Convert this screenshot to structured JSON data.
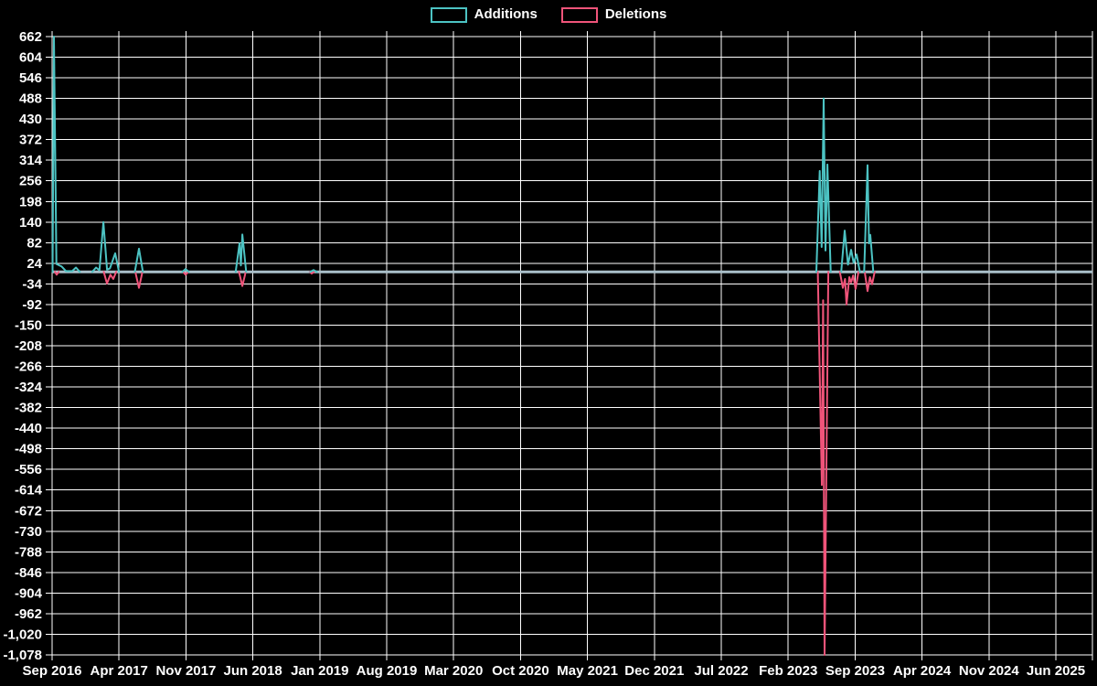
{
  "page": {
    "background": "#000000",
    "text_color": "#ffffff"
  },
  "legend": {
    "position": "top-center"
  },
  "chart_data": {
    "type": "line",
    "title": "",
    "xlabel": "",
    "ylabel": "",
    "grid": true,
    "legend_position": "top",
    "colors": {
      "background": "#000000",
      "grid": "#ffffff",
      "text": "#ffffff",
      "zero_baseline": "#a9bfc9"
    },
    "x_axis": {
      "unit": "month",
      "months_between_ticks": 7,
      "first_tick": "Sep 2016",
      "last_tick": "Jun 2025"
    },
    "x_tick_labels": [
      "Sep 2016",
      "Apr 2017",
      "Nov 2017",
      "Jun 2018",
      "Jan 2019",
      "Aug 2019",
      "Mar 2020",
      "Oct 2020",
      "May 2021",
      "Dec 2021",
      "Jul 2022",
      "Feb 2023",
      "Sep 2023",
      "Apr 2024",
      "Nov 2024",
      "Jun 2025"
    ],
    "y_axis": {
      "max": 662,
      "min": -1078,
      "step": 58
    },
    "y_tick_labels": [
      "662",
      "604",
      "546",
      "488",
      "430",
      "372",
      "314",
      "256",
      "198",
      "140",
      "82",
      "24",
      "-34",
      "-92",
      "-150",
      "-208",
      "-266",
      "-324",
      "-382",
      "-440",
      "-498",
      "-556",
      "-614",
      "-672",
      "-730",
      "-788",
      "-846",
      "-904",
      "-962",
      "-1,020",
      "-1,078"
    ],
    "series": [
      {
        "name": "Additions",
        "color": "#4cc3c3",
        "points_unit": "[months_since_Sep_2016, lines]",
        "clusters": [
          [
            [
              0.05,
              0
            ],
            [
              0.19,
              662
            ],
            [
              0.45,
              22
            ],
            [
              1.0,
              15
            ],
            [
              1.45,
              2
            ],
            [
              2.1,
              2
            ],
            [
              2.5,
              12
            ],
            [
              2.9,
              0
            ]
          ],
          [
            [
              4.2,
              0
            ],
            [
              4.6,
              12
            ],
            [
              4.95,
              4
            ],
            [
              5.36,
              140
            ],
            [
              5.75,
              6
            ],
            [
              6.05,
              10
            ],
            [
              6.6,
              52
            ],
            [
              7.0,
              0
            ]
          ],
          [
            [
              8.65,
              0
            ],
            [
              9.08,
              65
            ],
            [
              9.5,
              0
            ]
          ],
          [
            [
              13.62,
              0
            ],
            [
              13.96,
              8
            ],
            [
              14.3,
              0
            ]
          ],
          [
            [
              19.2,
              0
            ],
            [
              19.6,
              80
            ],
            [
              19.75,
              18
            ],
            [
              19.9,
              105
            ],
            [
              20.3,
              0
            ]
          ],
          [
            [
              27.0,
              0
            ],
            [
              27.35,
              5
            ],
            [
              27.7,
              0
            ]
          ],
          [
            [
              79.95,
              0
            ],
            [
              80.3,
              284
            ],
            [
              80.5,
              70
            ],
            [
              80.71,
              488
            ],
            [
              80.9,
              60
            ],
            [
              81.1,
              302
            ],
            [
              81.45,
              0
            ]
          ],
          [
            [
              82.55,
              0
            ],
            [
              82.91,
              116
            ],
            [
              83.25,
              20
            ],
            [
              83.58,
              62
            ],
            [
              83.85,
              25
            ],
            [
              84.15,
              49
            ],
            [
              84.5,
              0
            ]
          ],
          [
            [
              84.95,
              0
            ],
            [
              85.3,
              300
            ],
            [
              85.45,
              80
            ],
            [
              85.59,
              104
            ],
            [
              85.9,
              0
            ]
          ]
        ]
      },
      {
        "name": "Deletions",
        "color": "#f0547a",
        "points_unit": "[months_since_Sep_2016, lines]",
        "clusters": [
          [
            [
              0.3,
              0
            ],
            [
              0.48,
              -8
            ],
            [
              0.7,
              0
            ]
          ],
          [
            [
              5.4,
              0
            ],
            [
              5.74,
              -33
            ],
            [
              6.1,
              -8
            ],
            [
              6.4,
              -20
            ],
            [
              6.7,
              0
            ]
          ],
          [
            [
              8.7,
              0
            ],
            [
              9.08,
              -45
            ],
            [
              9.45,
              0
            ]
          ],
          [
            [
              13.7,
              0
            ],
            [
              13.96,
              -8
            ],
            [
              14.25,
              0
            ]
          ],
          [
            [
              19.55,
              0
            ],
            [
              19.9,
              -40
            ],
            [
              20.25,
              0
            ]
          ],
          [
            [
              26.95,
              0
            ],
            [
              27.16,
              -5
            ],
            [
              27.4,
              0
            ]
          ],
          [
            [
              80.1,
              0
            ],
            [
              80.52,
              -600
            ],
            [
              80.65,
              -80
            ],
            [
              80.81,
              -1078
            ],
            [
              81.2,
              0
            ]
          ],
          [
            [
              82.4,
              0
            ],
            [
              82.72,
              -45
            ],
            [
              82.95,
              -20
            ],
            [
              83.1,
              -92
            ],
            [
              83.4,
              -15
            ],
            [
              83.58,
              -30
            ],
            [
              83.8,
              -10
            ],
            [
              84.05,
              -48
            ],
            [
              84.35,
              0
            ]
          ],
          [
            [
              85.0,
              0
            ],
            [
              85.3,
              -54
            ],
            [
              85.55,
              -15
            ],
            [
              85.78,
              -35
            ],
            [
              86.05,
              0
            ]
          ]
        ]
      }
    ]
  }
}
